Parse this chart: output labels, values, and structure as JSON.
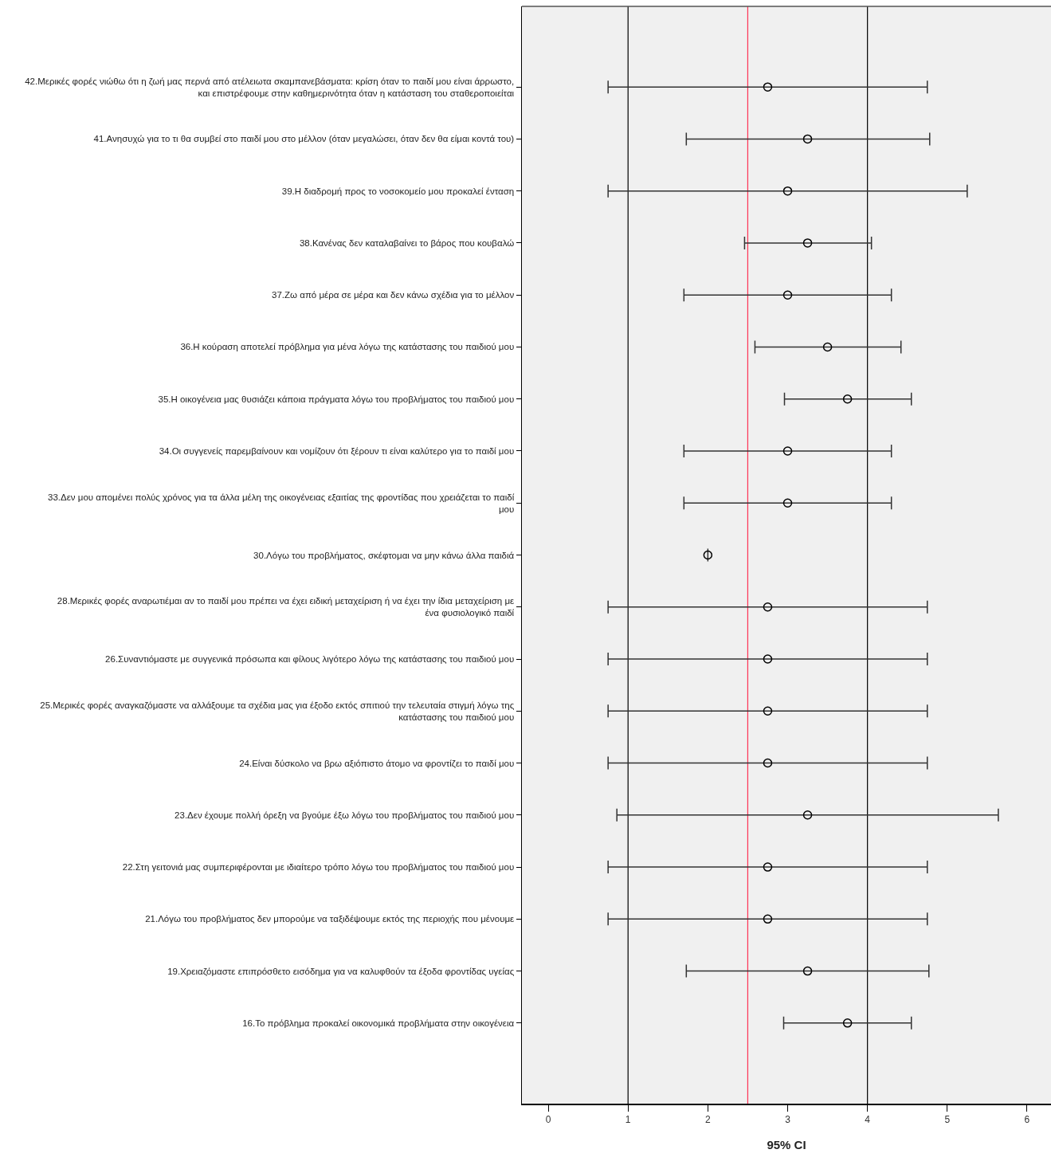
{
  "chart_data": {
    "type": "scatter",
    "orientation": "horizontal",
    "xlabel": "95% CI",
    "categories": [
      "42.Μερικές φορές νιώθω ότι η ζωή μας περνά από ατέλειωτα σκαμπανεβάσματα: κρίση όταν το παιδί μου είναι άρρωστο, και επιστρέφουμε στην καθημερινότητα όταν η κατάσταση του σταθεροποιείται",
      "41.Ανησυχώ για το τι θα συμβεί στο παιδί μου στο μέλλον (όταν μεγαλώσει, όταν δεν θα είμαι κοντά του)",
      "39.Η διαδρομή προς το νοσοκομείο μου προκαλεί ένταση",
      "38.Κανένας δεν καταλαβαίνει το βάρος που κουβαλώ",
      "37.Ζω από μέρα σε μέρα και δεν κάνω σχέδια για το μέλλον",
      "36.Η κούραση αποτελεί πρόβλημα για μένα λόγω της κατάστασης του παιδιού μου",
      "35.Η οικογένεια μας θυσιάζει κάποια πράγματα λόγω του προβλήματος του παιδιού μου",
      "34.Οι συγγενείς παρεμβαίνουν και νομίζουν ότι ξέρουν τι είναι καλύτερο για το παιδί μου",
      "33.Δεν μου απομένει πολύς χρόνος για τα άλλα μέλη της οικογένειας εξαιτίας της φροντίδας που χρειάζεται το παιδί μου",
      "30.Λόγω του προβλήματος, σκέφτομαι να μην κάνω άλλα παιδιά",
      "28.Μερικές φορές αναρωτιέμαι αν το παιδί μου πρέπει να έχει ειδική μεταχείριση ή να έχει την ίδια μεταχείριση με ένα φυσιολογικό παιδί",
      "26.Συναντιόμαστε με συγγενικά πρόσωπα και φίλους λιγότερο λόγω της κατάστασης του παιδιού μου",
      "25.Μερικές φορές αναγκαζόμαστε να αλλάξουμε τα σχέδια μας για έξοδο εκτός σπιτιού την τελευταία στιγμή λόγω της κατάστασης του παιδιού μου",
      "24.Είναι δύσκολο να βρω αξιόπιστο άτομο να φροντίζει το παιδί μου",
      "23.Δεν έχουμε πολλή όρεξη να βγούμε έξω λόγω του προβλήματος του παιδιού μου",
      "22.Στη γειτονιά μας συμπεριφέρονται με ιδιαίτερο τρόπο λόγω του προβλήματος του παιδιού μου",
      "21.Λόγω του προβλήματος δεν μπορούμε να ταξιδέψουμε εκτός της περιοχής που μένουμε",
      "19.Χρειαζόμαστε επιπρόσθετο εισόδημα για να καλυφθούν τα έξοδα φροντίδας υγείας",
      "16.Το πρόβλημα προκαλεί οικονομικά προβλήματα στην οικογένεια"
    ],
    "values": [
      2.75,
      3.25,
      3.0,
      3.25,
      3.0,
      3.5,
      3.75,
      3.0,
      3.0,
      2.0,
      2.75,
      2.75,
      2.75,
      2.75,
      3.25,
      2.75,
      2.75,
      3.25,
      3.75
    ],
    "errors": [
      [
        0.75,
        4.75
      ],
      [
        1.73,
        4.78
      ],
      [
        0.75,
        5.25
      ],
      [
        2.46,
        4.05
      ],
      [
        1.7,
        4.3
      ],
      [
        2.59,
        4.42
      ],
      [
        2.96,
        4.55
      ],
      [
        1.7,
        4.3
      ],
      [
        1.7,
        4.3
      ],
      null,
      [
        0.75,
        4.75
      ],
      [
        0.75,
        4.75
      ],
      [
        0.75,
        4.75
      ],
      [
        0.75,
        4.75
      ],
      [
        0.86,
        5.64
      ],
      [
        0.75,
        4.75
      ],
      [
        0.75,
        4.75
      ],
      [
        1.73,
        4.77
      ],
      [
        2.95,
        4.55
      ]
    ],
    "color": "#000000",
    "marker": "circle",
    "xlim": [
      -0.33,
      6.3
    ],
    "xticks": [
      0,
      1,
      2,
      3,
      4,
      5,
      6
    ],
    "grid": false,
    "ref_lines": [
      {
        "axis": "x",
        "value": 1,
        "color": "#000000"
      },
      {
        "axis": "x",
        "value": 2.5,
        "color": "#ff3355"
      },
      {
        "axis": "x",
        "value": 4,
        "color": "#000000"
      }
    ]
  }
}
